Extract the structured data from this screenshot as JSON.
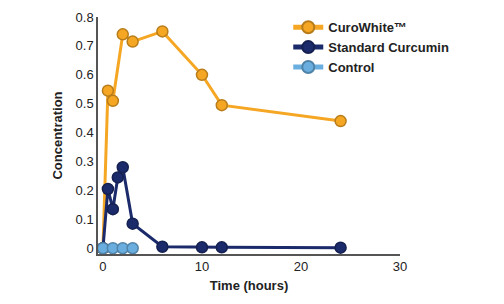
{
  "chart_data": {
    "type": "line",
    "x_label": "Time (hours)",
    "y_label": "Concentration",
    "series": [
      {
        "name": "CuroWhite™",
        "color": "#f5a623",
        "marker": "circle",
        "x": [
          0,
          0.5,
          1,
          2,
          3,
          6,
          10,
          12,
          24
        ],
        "values": [
          0,
          0.545,
          0.51,
          0.74,
          0.715,
          0.75,
          0.6,
          0.495,
          0.44
        ]
      },
      {
        "name": "Standard Curcumin",
        "color": "#1b2a6b",
        "marker": "circle",
        "x": [
          0,
          0.5,
          1,
          1.5,
          2,
          3,
          6,
          10,
          12,
          24
        ],
        "values": [
          0,
          0.205,
          0.135,
          0.245,
          0.28,
          0.085,
          0.005,
          0.003,
          0.003,
          0.002
        ]
      },
      {
        "name": "Control",
        "color": "#6aaee0",
        "marker": "circle",
        "x": [
          0,
          1,
          2,
          3
        ],
        "values": [
          0,
          0,
          0,
          0
        ]
      }
    ],
    "xlim": [
      -0.5,
      30
    ],
    "xticks": [
      0,
      10,
      20,
      30
    ],
    "ylim": [
      -0.02,
      0.8
    ],
    "yticks": [
      0,
      0.1,
      0.2,
      0.3,
      0.4,
      0.5,
      0.6,
      0.7,
      0.8
    ],
    "grid": false,
    "legend": "upper right"
  }
}
